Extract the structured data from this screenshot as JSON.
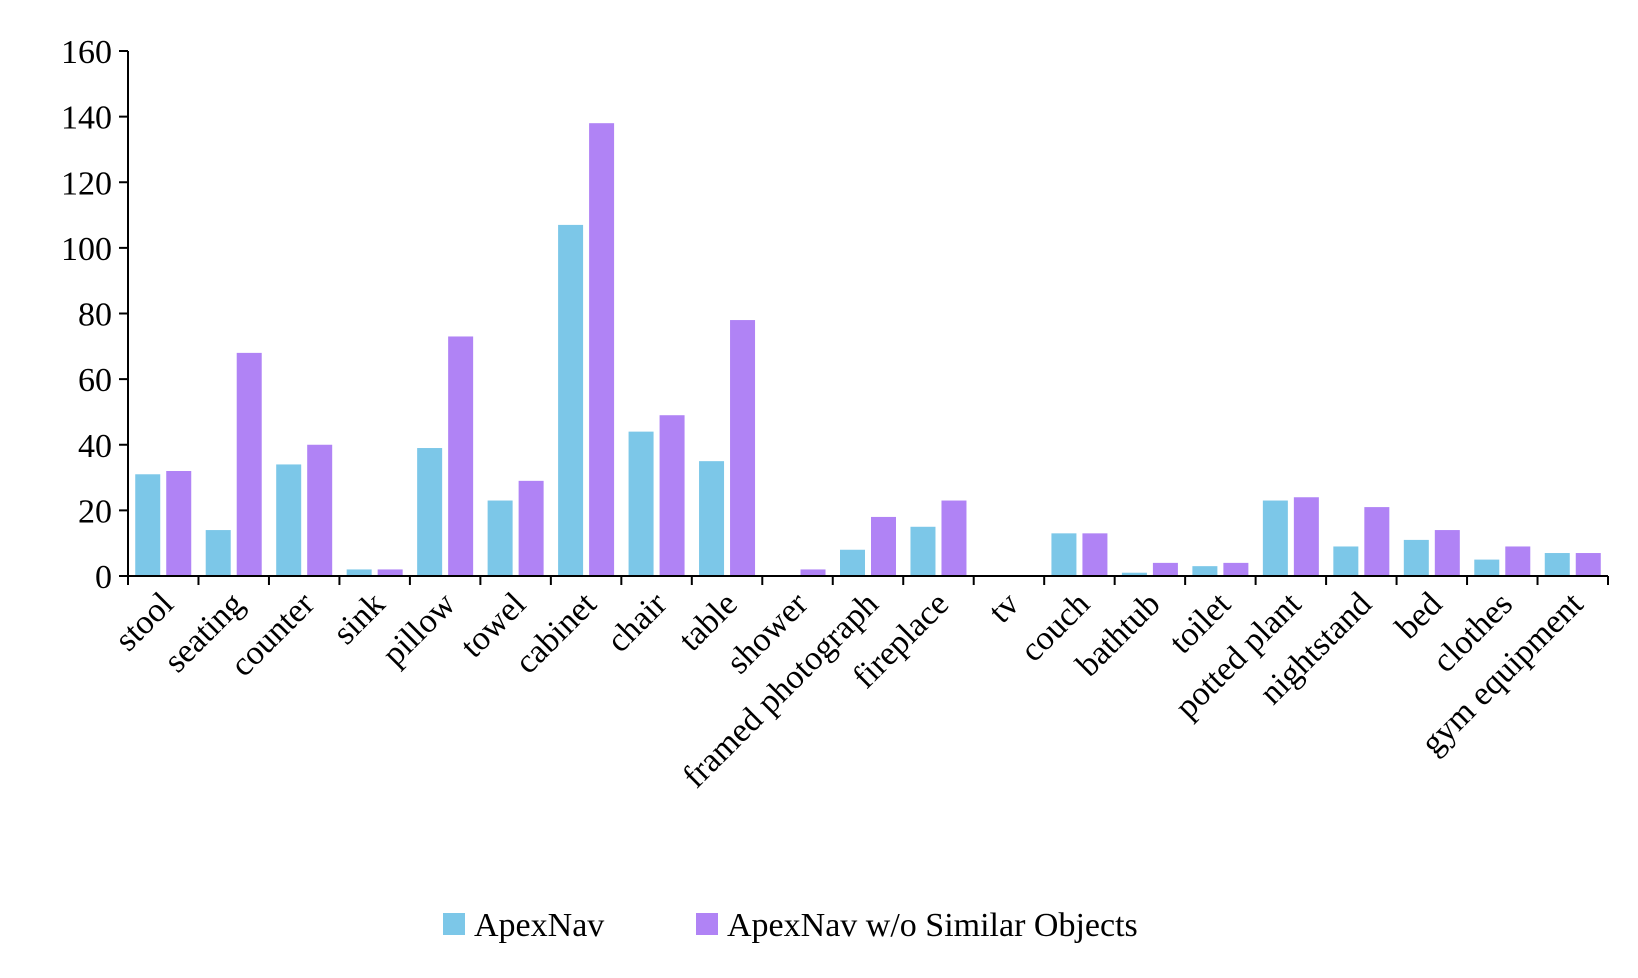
{
  "chart_data": {
    "type": "bar",
    "title": "",
    "xlabel": "",
    "ylabel": "",
    "ylim": [
      0,
      160
    ],
    "yticks": [
      0,
      20,
      40,
      60,
      80,
      100,
      120,
      140,
      160
    ],
    "grid": false,
    "legend_position": "bottom",
    "categories": [
      "stool",
      "seating",
      "counter",
      "sink",
      "pillow",
      "towel",
      "cabinet",
      "chair",
      "table",
      "shower",
      "framed photograph",
      "fireplace",
      "tv",
      "couch",
      "bathtub",
      "toilet",
      "potted plant",
      "nightstand",
      "bed",
      "clothes",
      "gym equipment"
    ],
    "series": [
      {
        "name": "ApexNav",
        "color": "#7cc7e8",
        "values": [
          31,
          14,
          34,
          2,
          39,
          23,
          107,
          44,
          35,
          0,
          8,
          15,
          0,
          13,
          1,
          3,
          23,
          9,
          11,
          5,
          7
        ]
      },
      {
        "name": "ApexNav w/o Similar Objects",
        "color": "#b083f5",
        "values": [
          32,
          68,
          40,
          2,
          73,
          29,
          138,
          49,
          78,
          2,
          18,
          23,
          0,
          13,
          4,
          4,
          24,
          21,
          14,
          9,
          7
        ]
      }
    ]
  }
}
